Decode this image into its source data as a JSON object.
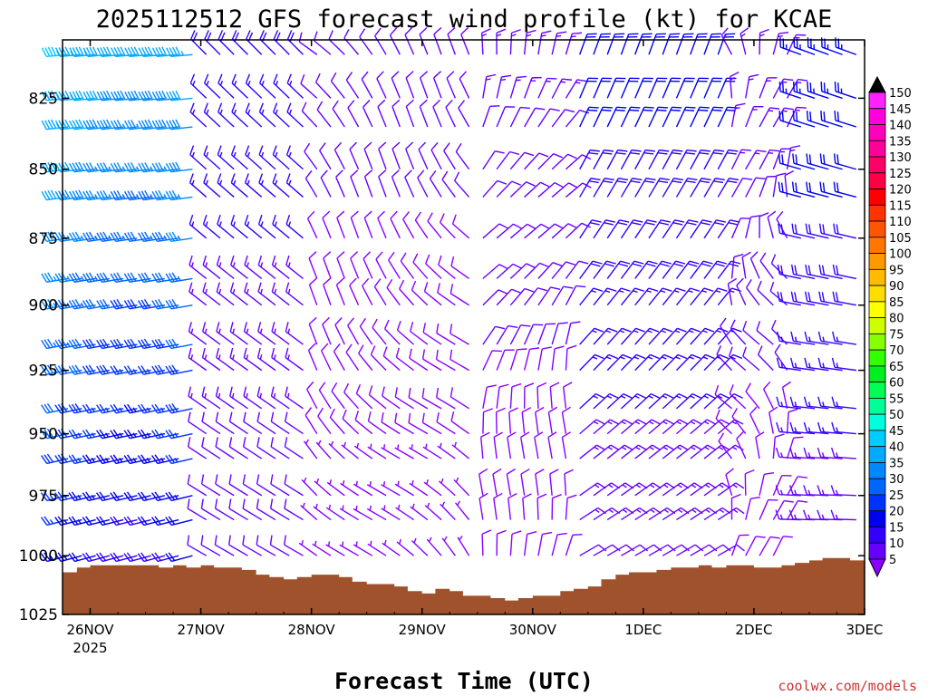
{
  "chart_data": {
    "type": "wind-profile",
    "title": "2025112512 GFS forecast wind profile (kt) for KCAE",
    "xlabel": "Forecast Time (UTC)",
    "credit": "coolwx.com/models",
    "x_ticks": [
      "26NOV",
      "27NOV",
      "28NOV",
      "29NOV",
      "30NOV",
      "1DEC",
      "2DEC",
      "3DEC"
    ],
    "x_year_label": "2025",
    "x_range_days": [
      -0.25,
      7.0
    ],
    "y_ticks": [
      825,
      850,
      875,
      900,
      925,
      950,
      975,
      1000,
      1025
    ],
    "ylim_hPa": [
      805,
      1025
    ],
    "y_scale": "log",
    "pressure_levels": [
      810,
      825,
      835,
      850,
      860,
      875,
      890,
      900,
      915,
      925,
      940,
      950,
      960,
      975,
      985,
      1000
    ],
    "colorbar": {
      "levels": [
        5,
        10,
        15,
        20,
        25,
        30,
        35,
        40,
        45,
        50,
        55,
        60,
        65,
        70,
        75,
        80,
        85,
        90,
        95,
        100,
        105,
        110,
        115,
        120,
        125,
        130,
        135,
        140,
        145,
        150
      ],
      "colors": [
        "#8800ff",
        "#6600ff",
        "#3300ff",
        "#0000ee",
        "#0033ff",
        "#0066ff",
        "#0088ff",
        "#00aaff",
        "#00ccff",
        "#00ffdd",
        "#00ff99",
        "#00ff55",
        "#00ee22",
        "#33ff00",
        "#88ff00",
        "#ccff00",
        "#ffff00",
        "#ffdd00",
        "#ffbb00",
        "#ff9900",
        "#ff7700",
        "#ff5500",
        "#ff3300",
        "#ff0000",
        "#ff0044",
        "#ff0066",
        "#ff0099",
        "#ff00bb",
        "#ff00dd",
        "#ff22ff"
      ]
    },
    "surface_pressure": {
      "x_days": [
        -0.25,
        -0.12,
        0.0,
        0.12,
        0.25,
        0.37,
        0.5,
        0.62,
        0.75,
        0.87,
        1.0,
        1.12,
        1.25,
        1.37,
        1.5,
        1.62,
        1.75,
        1.87,
        2.0,
        2.12,
        2.25,
        2.37,
        2.5,
        2.62,
        2.75,
        2.87,
        3.0,
        3.12,
        3.25,
        3.37,
        3.5,
        3.62,
        3.75,
        3.87,
        4.0,
        4.12,
        4.25,
        4.37,
        4.5,
        4.62,
        4.75,
        4.87,
        5.0,
        5.12,
        5.25,
        5.37,
        5.5,
        5.62,
        5.75,
        5.87,
        6.0,
        6.12,
        6.25,
        6.37,
        6.5,
        6.62,
        6.75,
        6.87,
        7.0
      ],
      "p_hPa": [
        1007,
        1005,
        1004,
        1004,
        1004,
        1004,
        1004,
        1005,
        1004,
        1005,
        1004,
        1005,
        1005,
        1006,
        1008,
        1009,
        1010,
        1009,
        1008,
        1008,
        1009,
        1011,
        1012,
        1012,
        1013,
        1015,
        1016,
        1014,
        1015,
        1017,
        1017,
        1018,
        1019,
        1018,
        1017,
        1017,
        1015,
        1014,
        1013,
        1010,
        1008,
        1007,
        1007,
        1006,
        1005,
        1005,
        1004,
        1005,
        1004,
        1004,
        1005,
        1005,
        1004,
        1003,
        1002,
        1001,
        1001,
        1002,
        1003
      ]
    },
    "wind_profile": "barbs every ~3h at each pressure level; speeds 20-45 kt westerly early, weakening to 5-15 kt variable 28NOV-30NOV, 10-25 kt late"
  }
}
